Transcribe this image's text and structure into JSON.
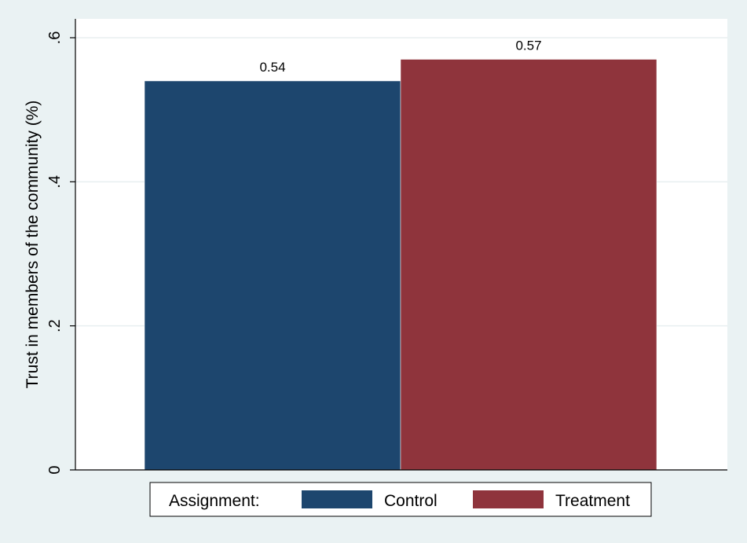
{
  "chart_data": {
    "type": "bar",
    "categories": [
      "Control",
      "Treatment"
    ],
    "values": [
      0.54,
      0.57
    ],
    "data_labels": [
      "0.54",
      "0.57"
    ],
    "ylabel": "Trust in members of the community (%)",
    "yticks": [
      0,
      0.2,
      0.4,
      0.6
    ],
    "ytick_labels": [
      "0",
      ".2",
      ".4",
      ".6"
    ],
    "ylim": [
      0,
      0.6
    ],
    "grid": true,
    "legend": {
      "title": "Assignment:",
      "position": "bottom",
      "entries": [
        "Control",
        "Treatment"
      ]
    },
    "colors": {
      "Control": "#1d466e",
      "Treatment": "#8f343c",
      "background": "#eaf2f3",
      "plot_background": "#ffffff",
      "grid": "#e8eff0"
    }
  }
}
